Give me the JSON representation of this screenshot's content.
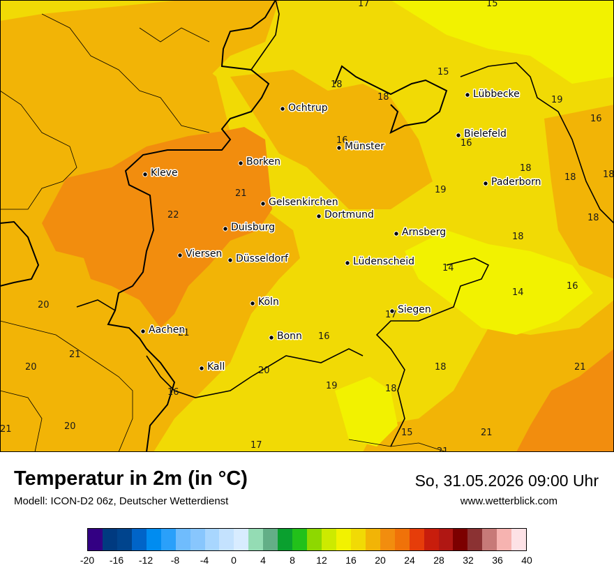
{
  "header": {
    "title": "Temperatur in 2m (in °C)",
    "subtitle": "Modell: ICON-D2 06z, Deutscher Wetterdienst",
    "datetime": "So, 31.05.2026 09:00 Uhr",
    "website": "www.wetterblick.com"
  },
  "map": {
    "cities": [
      {
        "name": "Ochtrup"
      },
      {
        "name": "Lübbecke"
      },
      {
        "name": "Bielefeld"
      },
      {
        "name": "Münster"
      },
      {
        "name": "Borken"
      },
      {
        "name": "Kleve"
      },
      {
        "name": "Paderborn"
      },
      {
        "name": "Gelsenkirchen"
      },
      {
        "name": "Dortmund"
      },
      {
        "name": "Duisburg"
      },
      {
        "name": "Arnsberg"
      },
      {
        "name": "Viersen"
      },
      {
        "name": "Düsseldorf"
      },
      {
        "name": "Lüdenscheid"
      },
      {
        "name": "Köln"
      },
      {
        "name": "Siegen"
      },
      {
        "name": "Aachen"
      },
      {
        "name": "Bonn"
      },
      {
        "name": "Kall"
      }
    ],
    "temperatures": [
      "17",
      "15",
      "15",
      "18",
      "18",
      "19",
      "16",
      "16",
      "16",
      "18",
      "18",
      "18",
      "21",
      "19",
      "22",
      "18",
      "18",
      "14",
      "14",
      "16",
      "20",
      "21",
      "17",
      "16",
      "21",
      "20",
      "20",
      "18",
      "21",
      "19",
      "18",
      "16",
      "21",
      "20",
      "15",
      "21",
      "17",
      "21"
    ]
  },
  "legend": {
    "colors": [
      "#330083",
      "#003a80",
      "#00448d",
      "#0064c8",
      "#008cf0",
      "#2aa0fa",
      "#6fbcfd",
      "#88c6fd",
      "#a8d6fe",
      "#c4e2fe",
      "#d8ecff",
      "#94dcb4",
      "#63ae87",
      "#0aa02f",
      "#22c11a",
      "#8ed800",
      "#cdea00",
      "#f2f200",
      "#f1da05",
      "#f2b406",
      "#f28d0e",
      "#f07209",
      "#e63d0a",
      "#c81d0c",
      "#b01713",
      "#7c0000",
      "#8b3233",
      "#c77a78",
      "#f6b3b0",
      "#fde2e6"
    ],
    "ticks": [
      "-20",
      "-16",
      "-12",
      "-8",
      "-4",
      "0",
      "4",
      "8",
      "12",
      "16",
      "20",
      "24",
      "28",
      "32",
      "36",
      "40"
    ]
  }
}
